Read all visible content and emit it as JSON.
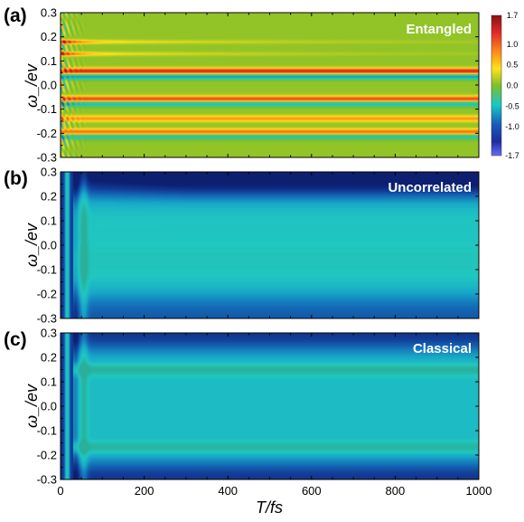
{
  "chart_data": [
    {
      "type": "heatmap",
      "panel": "(a)",
      "title": "Entangled",
      "xlabel": "",
      "ylabel": "ω_/ev",
      "xlim": [
        0,
        1000
      ],
      "ylim": [
        -0.3,
        0.3
      ],
      "yticks": [
        "0.3",
        "0.2",
        "0.1",
        "0.0",
        "-0.1",
        "-0.2",
        "-0.3"
      ],
      "zlim": [
        -1.7,
        1.7
      ],
      "bands": [
        {
          "y": 0.18,
          "amp": 1.2,
          "width": 0.008,
          "decay_fs": 40
        },
        {
          "y": 0.13,
          "amp": 1.1,
          "width": 0.008,
          "decay_fs": 40
        },
        {
          "y": 0.058,
          "amp": 1.3,
          "width": 0.012,
          "decay_fs": 0
        },
        {
          "y": 0.035,
          "amp": -0.7,
          "width": 0.012,
          "decay_fs": 0
        },
        {
          "y": -0.058,
          "amp": 1.1,
          "width": 0.012,
          "decay_fs": 0
        },
        {
          "y": -0.078,
          "amp": -0.6,
          "width": 0.012,
          "decay_fs": 0
        },
        {
          "y": -0.14,
          "amp": 0.7,
          "width": 0.012,
          "decay_fs": 0
        },
        {
          "y": -0.195,
          "amp": 0.9,
          "width": 0.012,
          "decay_fs": 0
        },
        {
          "y": -0.215,
          "amp": -0.5,
          "width": 0.012,
          "decay_fs": 0
        }
      ]
    },
    {
      "type": "heatmap",
      "panel": "(b)",
      "title": "Uncorrelated",
      "xlabel": "",
      "ylabel": "ω_/ev",
      "xlim": [
        0,
        1000
      ],
      "ylim": [
        -0.3,
        0.3
      ],
      "yticks": [
        "0.3",
        "0.2",
        "0.1",
        "0.0",
        "-0.1",
        "-0.2",
        "-0.3"
      ],
      "zlim": [
        -1.7,
        1.7
      ]
    },
    {
      "type": "heatmap",
      "panel": "(c)",
      "title": "Classical",
      "xlabel": "T/fs",
      "ylabel": "ω_/ev",
      "xlim": [
        0,
        1000
      ],
      "ylim": [
        -0.3,
        0.3
      ],
      "xticks": [
        "0",
        "200",
        "400",
        "600",
        "800",
        "1000"
      ],
      "yticks": [
        "0.3",
        "0.2",
        "0.1",
        "0.0",
        "-0.1",
        "-0.2",
        "-0.3"
      ],
      "zlim": [
        -1.7,
        1.7
      ]
    }
  ],
  "colorbar": {
    "labels": [
      "1.7",
      "1.0",
      "0.5",
      "0.0",
      "-0.5",
      "-1.0",
      "-1.7"
    ],
    "values": [
      1.7,
      1.0,
      0.5,
      0.0,
      -0.5,
      -1.0,
      -1.7
    ],
    "colors": [
      "#e0282a",
      "#ff7a1a",
      "#ffe21a",
      "#7fbf2a",
      "#17c8c8",
      "#1a2ea0",
      "#6a6aff"
    ]
  }
}
